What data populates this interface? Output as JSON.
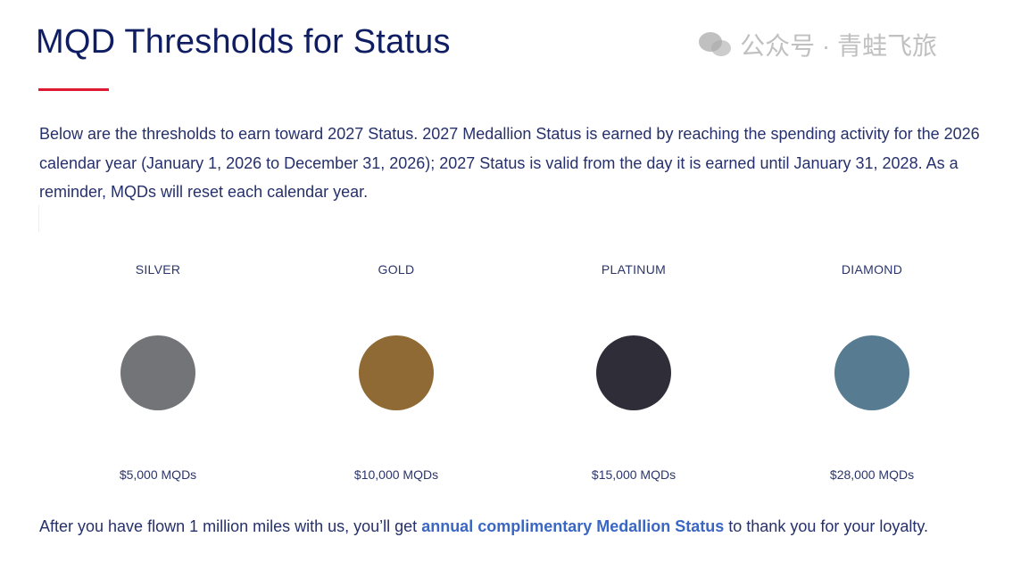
{
  "title": "MQD Thresholds for Status",
  "accent_color": "#e01933",
  "intro": "Below are the thresholds to earn toward 2027 Status. 2027 Medallion Status is earned by reaching the spending activity for the 2026 calendar year (January 1, 2026 to December 31, 2026); 2027 Status is valid from the day it is earned until January 31, 2028. As a reminder, MQDs will reset each calendar year.",
  "tiers": [
    {
      "name": "SILVER",
      "color": "#737478",
      "mqd": "$5,000 MQDs"
    },
    {
      "name": "GOLD",
      "color": "#8f6a34",
      "mqd": "$10,000 MQDs"
    },
    {
      "name": "PLATINUM",
      "color": "#2f2e38",
      "mqd": "$15,000 MQDs"
    },
    {
      "name": "DIAMOND",
      "color": "#577b91",
      "mqd": "$28,000 MQDs"
    }
  ],
  "footer": {
    "before": "After you have flown 1 million miles with us, you’ll get ",
    "link": "annual complimentary Medallion Status",
    "after": " to thank you for your loyalty."
  },
  "watermark": {
    "text": "公众号 · 青蛙飞旅",
    "icon": "wechat-icon"
  }
}
